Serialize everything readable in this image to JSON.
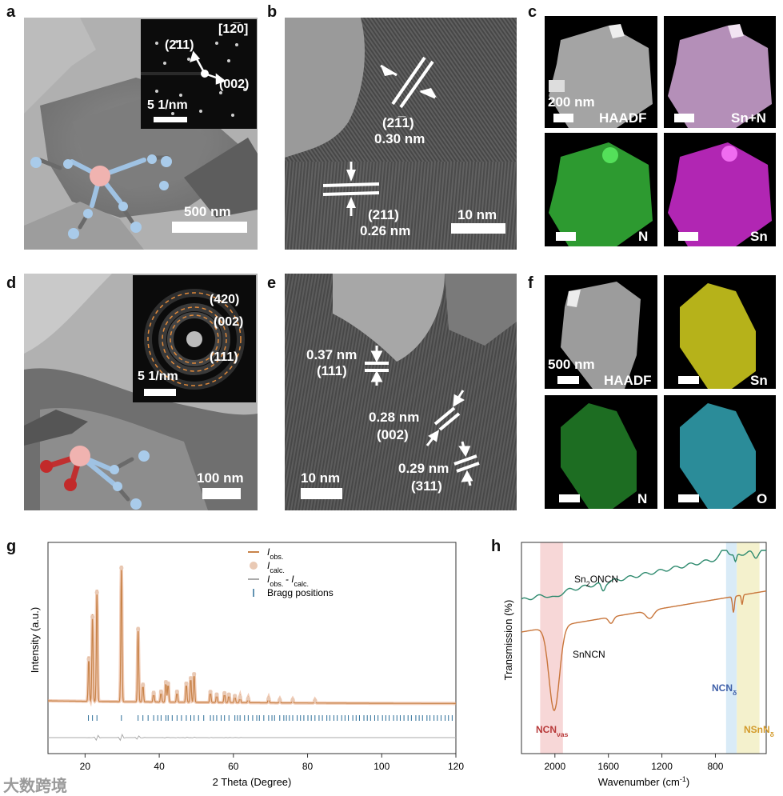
{
  "panels": {
    "a": {
      "label": "a",
      "zone": "[12̅0]",
      "spot1": "(211)",
      "spot2": "(002)",
      "inset_scale": "5 1/nm",
      "scale": "500 nm"
    },
    "b": {
      "label": "b",
      "fringe1_index": "(21̅1)",
      "fringe1_d": "0.30 nm",
      "fringe2_index": "(211)",
      "fringe2_d": "0.26 nm",
      "scale": "10 nm"
    },
    "c": {
      "label": "c",
      "scale": "200 nm",
      "tiles": [
        "HAADF",
        "Sn+N",
        "N",
        "Sn"
      ]
    },
    "d": {
      "label": "d",
      "ring1": "(420)",
      "ring2": "(002)",
      "ring3": "(111)",
      "inset_scale": "5 1/nm",
      "scale": "100 nm"
    },
    "e": {
      "label": "e",
      "f1_d": "0.37 nm",
      "f1_i": "(111)",
      "f2_d": "0.28 nm",
      "f2_i": "(002)",
      "f3_d": "0.29 nm",
      "f3_i": "(311)",
      "scale": "10 nm"
    },
    "f": {
      "label": "f",
      "scale": "500 nm",
      "tiles": [
        "HAADF",
        "Sn",
        "N",
        "O"
      ]
    },
    "g": {
      "label": "g"
    },
    "h": {
      "label": "h"
    }
  },
  "chart_data": [
    {
      "type": "line",
      "panel": "g",
      "xlabel": "2 Theta (Degree)",
      "ylabel": "Intensity (a.u.)",
      "xlim": [
        10,
        120
      ],
      "xticks": [
        20,
        40,
        60,
        80,
        100,
        120
      ],
      "legend": [
        {
          "name": "I",
          "sub": "obs.",
          "color": "#c8844a",
          "marker": "line"
        },
        {
          "name": "I",
          "sub": "calc.",
          "color": "#e9c9b4",
          "marker": "circle"
        },
        {
          "name": "I",
          "sub": "obs.",
          "name2": "- I",
          "sub2": "calc.",
          "color": "#aaaaaa",
          "marker": "line"
        },
        {
          "name": "Bragg positions",
          "color": "#2e6f99",
          "marker": "tick"
        }
      ],
      "peaks": [
        {
          "x": 21.0,
          "h": 0.33
        },
        {
          "x": 22.0,
          "h": 0.64
        },
        {
          "x": 23.2,
          "h": 0.82
        },
        {
          "x": 29.8,
          "h": 1.0
        },
        {
          "x": 34.3,
          "h": 0.55
        },
        {
          "x": 35.6,
          "h": 0.14
        },
        {
          "x": 38.5,
          "h": 0.08
        },
        {
          "x": 40.5,
          "h": 0.09
        },
        {
          "x": 41.8,
          "h": 0.16
        },
        {
          "x": 42.4,
          "h": 0.15
        },
        {
          "x": 44.8,
          "h": 0.09
        },
        {
          "x": 47.3,
          "h": 0.15
        },
        {
          "x": 48.5,
          "h": 0.19
        },
        {
          "x": 49.4,
          "h": 0.22
        },
        {
          "x": 53.8,
          "h": 0.09
        },
        {
          "x": 55.5,
          "h": 0.07
        },
        {
          "x": 57.6,
          "h": 0.08
        },
        {
          "x": 58.8,
          "h": 0.07
        },
        {
          "x": 60.4,
          "h": 0.06
        },
        {
          "x": 61.8,
          "h": 0.05
        },
        {
          "x": 64.0,
          "h": 0.04
        },
        {
          "x": 69.5,
          "h": 0.04
        },
        {
          "x": 72.5,
          "h": 0.03
        },
        {
          "x": 76.0,
          "h": 0.03
        },
        {
          "x": 82.0,
          "h": 0.025
        }
      ],
      "bragg_positions": [
        20.9,
        22.0,
        23.2,
        29.8,
        34.3,
        35.6,
        37.0,
        38.5,
        39.6,
        40.5,
        41.8,
        42.4,
        43.5,
        44.8,
        46.0,
        47.3,
        48.5,
        49.4,
        50.6,
        52.0,
        53.8,
        54.6,
        55.5,
        56.7,
        57.6,
        58.8,
        60.4,
        61.1,
        61.8,
        63.0,
        64.0,
        65.2,
        66.3,
        67.0,
        68.2,
        69.5,
        70.4,
        71.1,
        72.5,
        73.6,
        74.3,
        75.1,
        76.0,
        77.2,
        78.1,
        79.0,
        80.1,
        81.0,
        82.0,
        83.1,
        84.0,
        85.2,
        86.0,
        87.1,
        88.0,
        89.2,
        90.1,
        91.0,
        92.2,
        93.1,
        94.0,
        95.2,
        96.1,
        97.0,
        98.1,
        99.0,
        100.2,
        101.1,
        102.0,
        103.2,
        104.1,
        105.0,
        106.0,
        107.1,
        108.0,
        109.2,
        110.1,
        111.0,
        112.2,
        113.0,
        114.1,
        115.0,
        116.0,
        117.1,
        118.0,
        119.0
      ]
    },
    {
      "type": "line",
      "panel": "h",
      "xlabel": "Wavenumber (cm",
      "xlabel_sup": "-1",
      "xlabel_end": ")",
      "ylabel": "Transmission (%)",
      "xlim": [
        2250,
        420
      ],
      "xticks": [
        2000,
        1600,
        1200,
        800
      ],
      "series": [
        {
          "name": "Sn",
          "sub": "2",
          "name2": "ONCN",
          "color": "#2e8a6e"
        },
        {
          "name": "SnNCN",
          "color": "#c8753a"
        }
      ],
      "bands": [
        {
          "from": 2110,
          "to": 1940,
          "color": "#f6d3d3",
          "label": "NCN",
          "sub": "νas",
          "label_color": "#b83a3a"
        },
        {
          "from": 720,
          "to": 640,
          "color": "#d5e9f6",
          "label": "NCN",
          "sub": "δ",
          "label_color": "#3e5fa8"
        },
        {
          "from": 640,
          "to": 470,
          "color": "#f3f0c8",
          "label": "NSnN",
          "sub": "δ",
          "label_color": "#d39a2a"
        }
      ]
    }
  ],
  "watermark": "大数跨境"
}
